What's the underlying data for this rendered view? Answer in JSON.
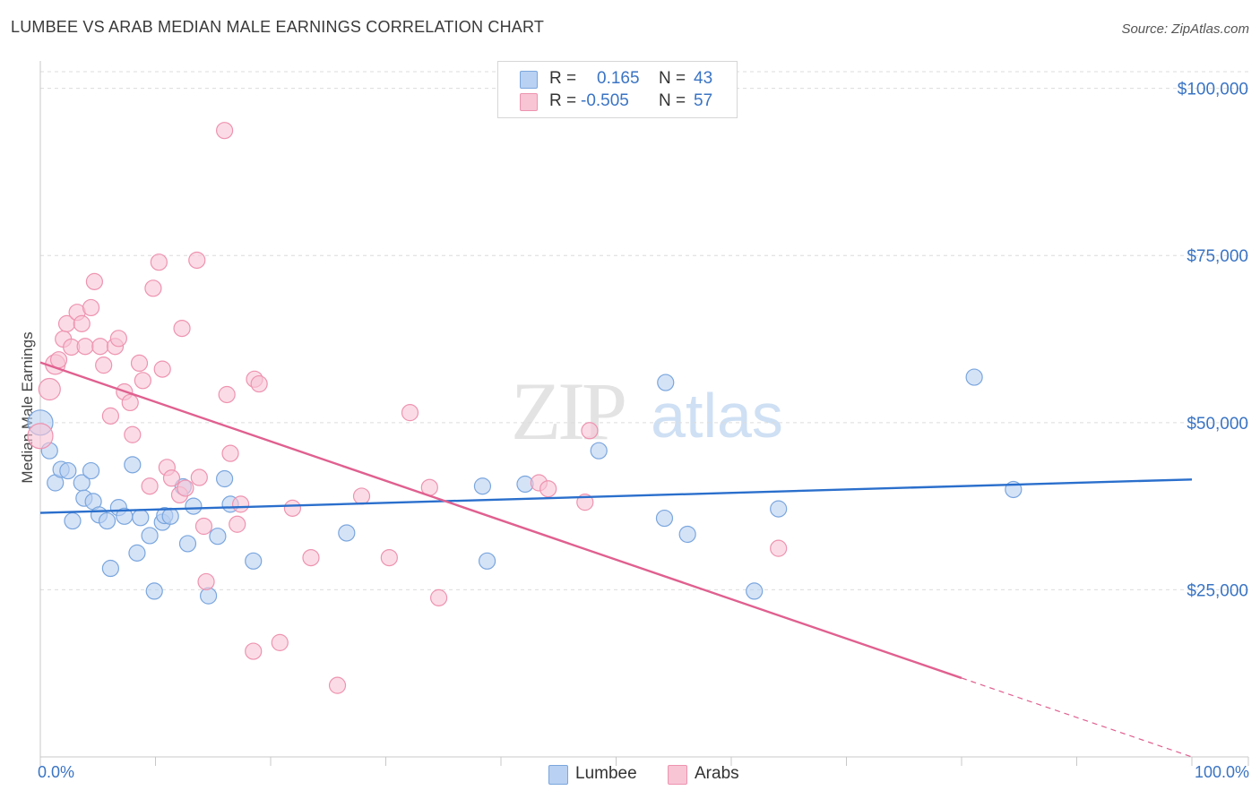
{
  "title": "LUMBEE VS ARAB MEDIAN MALE EARNINGS CORRELATION CHART",
  "source": "Source: ZipAtlas.com",
  "watermark": {
    "zip": "ZIP",
    "atlas": "atlas"
  },
  "colors": {
    "lumbee_fill": "#b9d1f2",
    "lumbee_stroke": "#7aa6de",
    "lumbee_line": "#2a6fcc",
    "arabs_fill": "#f8c5d5",
    "arabs_stroke": "#ee93b0",
    "arabs_line": "#e0608f",
    "tick_text": "#3a74c4",
    "grid": "#dcdcdc"
  },
  "legend": {
    "rows": [
      {
        "series": "Lumbee",
        "r_label": "R =",
        "r_value": "0.165",
        "n_label": "N =",
        "n_value": "43"
      },
      {
        "series": "Arabs",
        "r_label": "R =",
        "r_value": "-0.505",
        "n_label": "N =",
        "n_value": "57"
      }
    ]
  },
  "bottom_legend": [
    "Lumbee",
    "Arabs"
  ],
  "chart_data": {
    "type": "scatter",
    "title": "LUMBEE VS ARAB MEDIAN MALE EARNINGS CORRELATION CHART",
    "xlabel": "",
    "ylabel": "Median Male Earnings",
    "xlim": [
      0,
      100
    ],
    "ylim": [
      0,
      102500
    ],
    "x_tick_labels": [
      "0.0%",
      "100.0%"
    ],
    "y_ticks": [
      {
        "value": 100000,
        "label": "$100,000"
      },
      {
        "value": 75000,
        "label": "$75,000"
      },
      {
        "value": 50000,
        "label": "$50,000"
      },
      {
        "value": 25000,
        "label": "$25,000"
      }
    ],
    "series": [
      {
        "name": "Lumbee",
        "r": 0.165,
        "n": 43,
        "trend": {
          "x0": 0,
          "y0": 36500,
          "x1": 100,
          "y1": 41500
        },
        "points": [
          [
            0,
            50000,
            14
          ],
          [
            0.8,
            45800,
            9
          ],
          [
            1.3,
            41000,
            9
          ],
          [
            1.8,
            43000,
            9
          ],
          [
            2.4,
            42800,
            9
          ],
          [
            2.8,
            35300,
            9
          ],
          [
            3.6,
            41000,
            9
          ],
          [
            3.8,
            38700,
            9
          ],
          [
            4.4,
            42800,
            9
          ],
          [
            4.6,
            38200,
            9
          ],
          [
            5.1,
            36200,
            9
          ],
          [
            5.8,
            35300,
            9
          ],
          [
            6.1,
            28200,
            9
          ],
          [
            6.8,
            37300,
            9
          ],
          [
            7.3,
            36000,
            9
          ],
          [
            8.0,
            43700,
            9
          ],
          [
            8.4,
            30500,
            9
          ],
          [
            8.7,
            35800,
            9
          ],
          [
            9.5,
            33100,
            9
          ],
          [
            9.9,
            24800,
            9
          ],
          [
            10.6,
            35100,
            9
          ],
          [
            10.8,
            36100,
            9
          ],
          [
            11.3,
            36000,
            9
          ],
          [
            12.4,
            40400,
            9
          ],
          [
            12.8,
            31900,
            9
          ],
          [
            13.3,
            37500,
            9
          ],
          [
            14.6,
            24100,
            9
          ],
          [
            15.4,
            33000,
            9
          ],
          [
            16.0,
            41600,
            9
          ],
          [
            16.5,
            37800,
            9
          ],
          [
            18.5,
            29300,
            9
          ],
          [
            26.6,
            33500,
            9
          ],
          [
            38.4,
            40500,
            9
          ],
          [
            38.8,
            29300,
            9
          ],
          [
            42.1,
            40800,
            9
          ],
          [
            48.5,
            45800,
            9
          ],
          [
            54.2,
            35700,
            9
          ],
          [
            54.3,
            56000,
            9
          ],
          [
            56.2,
            33300,
            9
          ],
          [
            62.0,
            24800,
            9
          ],
          [
            64.1,
            37100,
            9
          ],
          [
            81.1,
            56800,
            9
          ],
          [
            84.5,
            40000,
            9
          ]
        ]
      },
      {
        "name": "Arabs",
        "r": -0.505,
        "n": 57,
        "trend": {
          "x0": 0,
          "y0": 59000,
          "x1": 80,
          "y1": 11800,
          "dash_to_x": 100,
          "dash_to_y": 0
        },
        "points": [
          [
            0,
            48000,
            14
          ],
          [
            0.8,
            55000,
            12
          ],
          [
            1.3,
            58700,
            11
          ],
          [
            1.6,
            59400,
            9
          ],
          [
            2.0,
            62500,
            9
          ],
          [
            2.3,
            64800,
            9
          ],
          [
            2.7,
            61300,
            9
          ],
          [
            3.2,
            66500,
            9
          ],
          [
            3.6,
            64800,
            9
          ],
          [
            3.9,
            61400,
            9
          ],
          [
            4.4,
            67200,
            9
          ],
          [
            4.7,
            71100,
            9
          ],
          [
            5.2,
            61400,
            9
          ],
          [
            5.5,
            58600,
            9
          ],
          [
            6.1,
            51000,
            9
          ],
          [
            6.5,
            61400,
            9
          ],
          [
            6.8,
            62600,
            9
          ],
          [
            7.3,
            54600,
            9
          ],
          [
            7.8,
            53000,
            9
          ],
          [
            8.0,
            48200,
            9
          ],
          [
            8.6,
            58900,
            9
          ],
          [
            8.9,
            56300,
            9
          ],
          [
            9.5,
            40500,
            9
          ],
          [
            9.8,
            70100,
            9
          ],
          [
            10.3,
            74000,
            9
          ],
          [
            10.6,
            58000,
            9
          ],
          [
            11.0,
            43300,
            9
          ],
          [
            11.4,
            41700,
            9
          ],
          [
            12.1,
            39200,
            9
          ],
          [
            12.3,
            64100,
            9
          ],
          [
            12.6,
            40200,
            9
          ],
          [
            13.6,
            74300,
            9
          ],
          [
            13.8,
            41800,
            9
          ],
          [
            14.2,
            34500,
            9
          ],
          [
            14.4,
            26200,
            9
          ],
          [
            16.0,
            93700,
            9
          ],
          [
            16.2,
            54200,
            9
          ],
          [
            16.5,
            45400,
            9
          ],
          [
            17.1,
            34800,
            9
          ],
          [
            17.4,
            37800,
            9
          ],
          [
            18.5,
            15800,
            9
          ],
          [
            18.6,
            56500,
            9
          ],
          [
            19.0,
            55800,
            9
          ],
          [
            20.8,
            17100,
            9
          ],
          [
            21.9,
            37200,
            9
          ],
          [
            23.5,
            29800,
            9
          ],
          [
            25.8,
            10700,
            9
          ],
          [
            27.9,
            39000,
            9
          ],
          [
            30.3,
            29800,
            9
          ],
          [
            32.1,
            51500,
            9
          ],
          [
            33.8,
            40300,
            9
          ],
          [
            34.6,
            23800,
            9
          ],
          [
            43.3,
            41000,
            9
          ],
          [
            44.1,
            40100,
            9
          ],
          [
            47.3,
            38100,
            9
          ],
          [
            47.7,
            48800,
            9
          ],
          [
            64.1,
            31200,
            9
          ]
        ]
      }
    ]
  }
}
